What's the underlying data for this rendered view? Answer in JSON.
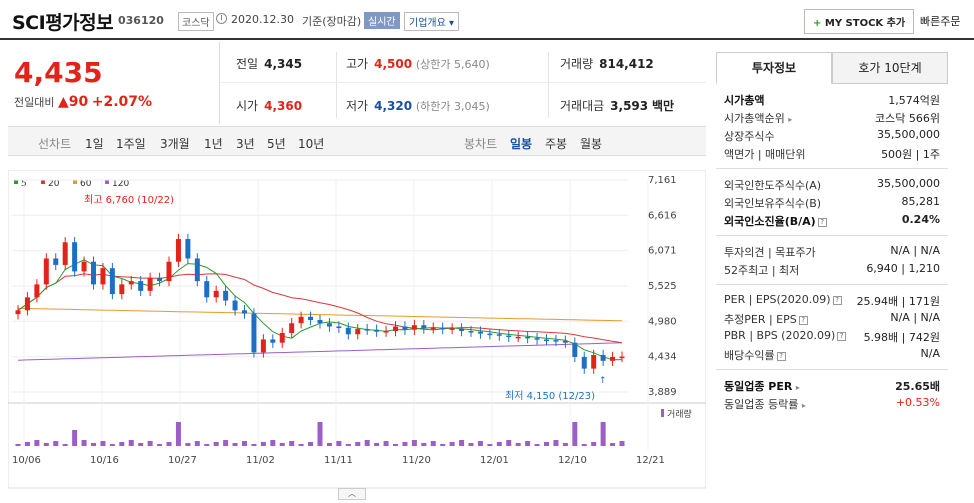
{
  "header": {
    "stock_name": "SCI평가정보",
    "stock_code": "036120",
    "market": "코스닥",
    "date": "2020.12.30",
    "basis": "기준(장마감)",
    "realtime": "실시간",
    "overview": "기업개요",
    "my_stock": "MY STOCK 추가",
    "quick_order": "빠른주문"
  },
  "price": {
    "current": "4,435",
    "change_label": "전일대비",
    "change": "90",
    "change_pct": "+2.07%"
  },
  "quotes": {
    "prev_close_label": "전일",
    "prev_close": "4,345",
    "high_label": "고가",
    "high": "4,500",
    "upper_limit": "(상한가 5,640)",
    "volume_label": "거래량",
    "volume": "814,412",
    "open_label": "시가",
    "open": "4,360",
    "low_label": "저가",
    "low": "4,320",
    "lower_limit": "(하한가 3,045)",
    "value_label": "거래대금",
    "value": "3,593",
    "value_unit": "백만"
  },
  "periods": {
    "line_label": "선차트",
    "items": [
      "1일",
      "1주일",
      "3개월",
      "1년",
      "3년",
      "5년",
      "10년"
    ],
    "candle_label": "봉차트",
    "candle_items": [
      "일봉",
      "주봉",
      "월봉"
    ],
    "candle_selected": "일봉"
  },
  "sidebar": {
    "tab_invest": "투자정보",
    "tab_quote": "호가 10단계",
    "s1": [
      {
        "k": "시가총액",
        "v": "1,574억원"
      },
      {
        "k": "시가총액순위",
        "v": "코스닥 566위"
      },
      {
        "k": "상장주식수",
        "v": "35,500,000"
      },
      {
        "k": "액면가 | 매매단위",
        "v": "500원 | 1주"
      }
    ],
    "s2": [
      {
        "k": "외국인한도주식수(A)",
        "v": "35,500,000"
      },
      {
        "k": "외국인보유주식수(B)",
        "v": "85,281"
      },
      {
        "k": "외국인소진율(B/A)",
        "v": "0.24%"
      }
    ],
    "s3": [
      {
        "k": "투자의견 | 목표주가",
        "v": "N/A | N/A"
      },
      {
        "k": "52주최고 | 최저",
        "v": "6,940 | 1,210"
      }
    ],
    "s4": [
      {
        "k": "PER | EPS(2020.09)",
        "v": "25.94배 | 171원"
      },
      {
        "k": "추정PER | EPS",
        "v": "N/A | N/A"
      },
      {
        "k": "PBR | BPS (2020.09)",
        "v": "5.98배 | 742원"
      },
      {
        "k": "배당수익률",
        "v": "N/A"
      }
    ],
    "s5": [
      {
        "k": "동일업종 PER",
        "v": "25.65배"
      },
      {
        "k": "동일업종 등락률",
        "v": "+0.53%"
      }
    ]
  },
  "colors": {
    "up": "#e2231a",
    "down": "#1e6fc4",
    "ma5": "#2e9a2e",
    "ma20": "#d83a3a",
    "ma60": "#e59a2c",
    "ma120": "#9b5fc6"
  },
  "chart_data": {
    "type": "candlestick",
    "legend": [
      "5",
      "20",
      "60",
      "120"
    ],
    "y_ticks": [
      7161,
      6616,
      6071,
      5525,
      4980,
      4434,
      3889
    ],
    "x_ticks": [
      "10/06",
      "10/16",
      "10/27",
      "11/02",
      "11/11",
      "11/20",
      "12/01",
      "12/10",
      "12/21"
    ],
    "annotations": {
      "high": "최고 6,760 (10/22)",
      "low": "최저 4,150 (12/23)"
    },
    "volume_label": "거래량",
    "closes": [
      5150,
      5350,
      5550,
      5950,
      5850,
      6200,
      5750,
      5900,
      5550,
      5800,
      5400,
      5550,
      5600,
      5450,
      5650,
      5600,
      5900,
      6250,
      5950,
      5600,
      5350,
      5450,
      5300,
      5150,
      5100,
      4500,
      4700,
      4650,
      4800,
      4950,
      5050,
      5000,
      4950,
      4900,
      4880,
      4780,
      4860,
      4850,
      4820,
      4830,
      4900,
      4850,
      4920,
      4870,
      4880,
      4860,
      4870,
      4830,
      4820,
      4790,
      4780,
      4760,
      4740,
      4740,
      4720,
      4700,
      4690,
      4680,
      4650,
      4430,
      4250,
      4460,
      4370,
      4430,
      4435
    ]
  }
}
